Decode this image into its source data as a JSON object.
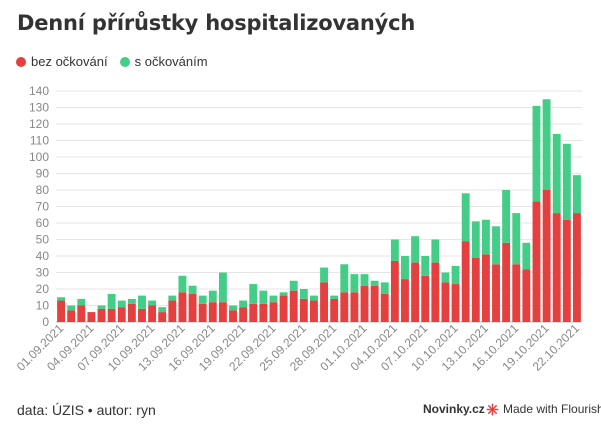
{
  "title": "Denní přírůstky hospitalizovaných",
  "legend": [
    {
      "label": "bez očkování",
      "color": "#e3403f"
    },
    {
      "label": "s očkováním",
      "color": "#44cd87"
    }
  ],
  "footer": {
    "source": "data: ÚZIS • autor: ryn",
    "brand": "Novinky.cz",
    "made_with": "Made with Flourish"
  },
  "chart_data": {
    "type": "bar",
    "stacked": true,
    "title": "Denní přírůstky hospitalizovaných",
    "xlabel": "",
    "ylabel": "",
    "ylim": [
      0,
      140
    ],
    "yticks": [
      0,
      10,
      20,
      30,
      40,
      50,
      60,
      70,
      80,
      90,
      100,
      110,
      120,
      130,
      140
    ],
    "grid": true,
    "legend_position": "top-left",
    "categories": [
      "01.09.2021",
      "02.09.2021",
      "03.09.2021",
      "04.09.2021",
      "05.09.2021",
      "06.09.2021",
      "07.09.2021",
      "08.09.2021",
      "09.09.2021",
      "10.09.2021",
      "11.09.2021",
      "12.09.2021",
      "13.09.2021",
      "14.09.2021",
      "15.09.2021",
      "16.09.2021",
      "17.09.2021",
      "18.09.2021",
      "19.09.2021",
      "20.09.2021",
      "21.09.2021",
      "22.09.2021",
      "23.09.2021",
      "24.09.2021",
      "25.09.2021",
      "26.09.2021",
      "27.09.2021",
      "28.09.2021",
      "29.09.2021",
      "30.09.2021",
      "01.10.2021",
      "02.10.2021",
      "03.10.2021",
      "04.10.2021",
      "05.10.2021",
      "06.10.2021",
      "07.10.2021",
      "08.10.2021",
      "09.10.2021",
      "10.10.2021",
      "11.10.2021",
      "12.10.2021",
      "13.10.2021",
      "14.10.2021",
      "15.10.2021",
      "16.10.2021",
      "17.10.2021",
      "18.10.2021",
      "19.10.2021",
      "20.10.2021",
      "21.10.2021",
      "22.10.2021"
    ],
    "tick_labels": [
      "01.09.2021",
      "04.09.2021",
      "07.09.2021",
      "10.09.2021",
      "13.09.2021",
      "16.09.2021",
      "19.09.2021",
      "22.09.2021",
      "25.09.2021",
      "28.09.2021",
      "01.10.2021",
      "04.10.2021",
      "07.10.2021",
      "10.10.2021",
      "13.10.2021",
      "16.10.2021",
      "19.10.2021",
      "22.10.2021"
    ],
    "series": [
      {
        "name": "bez očkování",
        "color": "#e3403f",
        "values": [
          13,
          7,
          10,
          6,
          8,
          8,
          9,
          11,
          8,
          10,
          6,
          13,
          18,
          17,
          11,
          12,
          12,
          7,
          9,
          11,
          11,
          12,
          16,
          19,
          14,
          13,
          24,
          14,
          18,
          18,
          22,
          22,
          17,
          37,
          26,
          36,
          28,
          36,
          24,
          23,
          49,
          39,
          41,
          35,
          48,
          35,
          32,
          73,
          80,
          66,
          62,
          66
        ]
      },
      {
        "name": "s očkováním",
        "color": "#44cd87",
        "values": [
          2,
          3,
          4,
          0,
          2,
          9,
          4,
          3,
          8,
          3,
          3,
          3,
          10,
          5,
          5,
          7,
          18,
          3,
          4,
          12,
          8,
          4,
          2,
          6,
          6,
          3,
          9,
          2,
          17,
          11,
          7,
          3,
          7,
          13,
          14,
          16,
          12,
          14,
          6,
          11,
          29,
          22,
          21,
          23,
          32,
          31,
          16,
          58,
          55,
          48,
          46,
          23
        ]
      }
    ]
  }
}
